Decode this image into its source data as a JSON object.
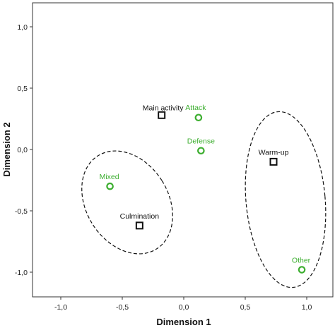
{
  "chart_data": {
    "type": "scatter",
    "xlabel": "Dimension 1",
    "ylabel": "Dimension 2",
    "xlim": [
      -1.0,
      1.0
    ],
    "ylim": [
      -1.0,
      1.0
    ],
    "x_ticks": [
      "-1,0",
      "-0,5",
      "0,0",
      "0,5",
      "1,0"
    ],
    "y_ticks": [
      "1,0",
      "0,5",
      "0,0",
      "-0,5",
      "-1,0"
    ],
    "grid": false,
    "legend": "none",
    "series": [
      {
        "marker": "square",
        "color": "#111111",
        "points": [
          {
            "label": "Main activity",
            "x": -0.18,
            "y": 0.28
          },
          {
            "label": "Warm-up",
            "x": 0.73,
            "y": -0.1
          },
          {
            "label": "Culmination",
            "x": -0.36,
            "y": -0.62
          }
        ]
      },
      {
        "marker": "circle",
        "color": "#3cae2f",
        "points": [
          {
            "label": "Attack",
            "x": 0.12,
            "y": 0.26
          },
          {
            "label": "Defense",
            "x": 0.14,
            "y": -0.01
          },
          {
            "label": "Mixed",
            "x": -0.6,
            "y": -0.3
          },
          {
            "label": "Other",
            "x": 0.96,
            "y": -0.98
          }
        ]
      }
    ],
    "annotations": [
      {
        "shape": "dashed-ellipse",
        "encloses": [
          "Mixed",
          "Culmination"
        ]
      },
      {
        "shape": "dashed-ellipse",
        "encloses": [
          "Warm-up",
          "Other"
        ]
      }
    ]
  }
}
